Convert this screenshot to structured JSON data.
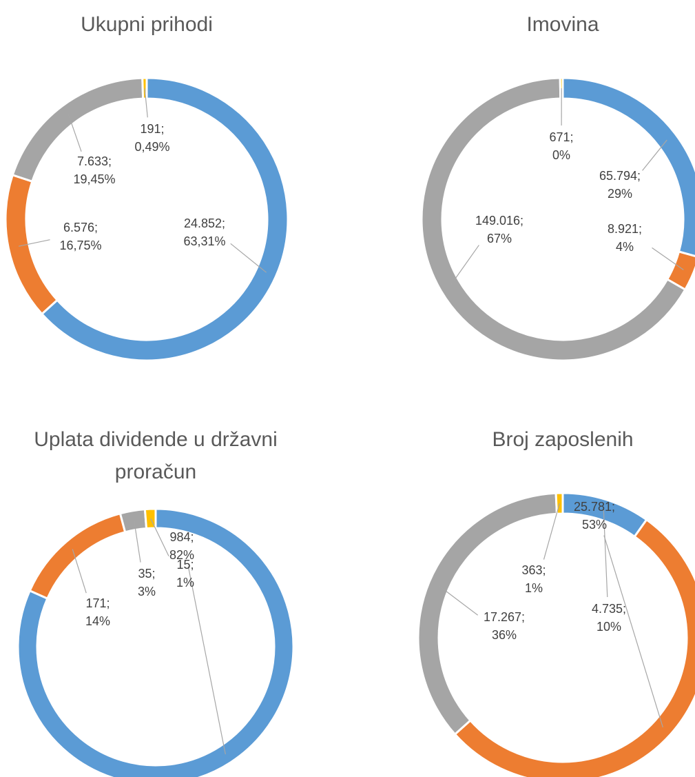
{
  "chart_data": [
    {
      "type": "donut",
      "title": "Ukupni prihodi",
      "values": [
        24852,
        6576,
        7633,
        191
      ],
      "value_labels": [
        "24.852;",
        "6.576;",
        "7.633;",
        "191;"
      ],
      "percentages": [
        63.31,
        16.75,
        19.45,
        0.49
      ],
      "percent_labels": [
        "63,31%",
        "16,75%",
        "19,45%",
        "0,49%"
      ],
      "colors": [
        "#5b9bd5",
        "#ed7d31",
        "#a5a5a5",
        "#ffc000"
      ]
    },
    {
      "type": "donut",
      "title": "Imovina",
      "values": [
        65794,
        8921,
        149016,
        671
      ],
      "value_labels": [
        "65.794;",
        "8.921;",
        "149.016;",
        "671;"
      ],
      "percentages": [
        29,
        4,
        67,
        0
      ],
      "percent_labels": [
        "29%",
        "4%",
        "67%",
        "0%"
      ],
      "colors": [
        "#5b9bd5",
        "#ed7d31",
        "#a5a5a5",
        "#ffc000"
      ]
    },
    {
      "type": "donut",
      "title": "Uplata dividende u državni proračun",
      "values": [
        984,
        171,
        35,
        15
      ],
      "value_labels": [
        "984;",
        "171;",
        "35;",
        "15;"
      ],
      "percentages": [
        82,
        14,
        3,
        1
      ],
      "percent_labels": [
        "82%",
        "14%",
        "3%",
        "1%"
      ],
      "colors": [
        "#5b9bd5",
        "#ed7d31",
        "#a5a5a5",
        "#ffc000"
      ]
    },
    {
      "type": "donut",
      "title": "Broj zaposlenih",
      "values": [
        4735,
        25781,
        17267,
        363
      ],
      "value_labels": [
        "4.735;",
        "25.781;",
        "17.267;",
        "363;"
      ],
      "percentages": [
        10,
        53,
        36,
        1
      ],
      "percent_labels": [
        "10%",
        "53%",
        "36%",
        "1%"
      ],
      "colors": [
        "#5b9bd5",
        "#ed7d31",
        "#a5a5a5",
        "#ffc000"
      ]
    }
  ]
}
